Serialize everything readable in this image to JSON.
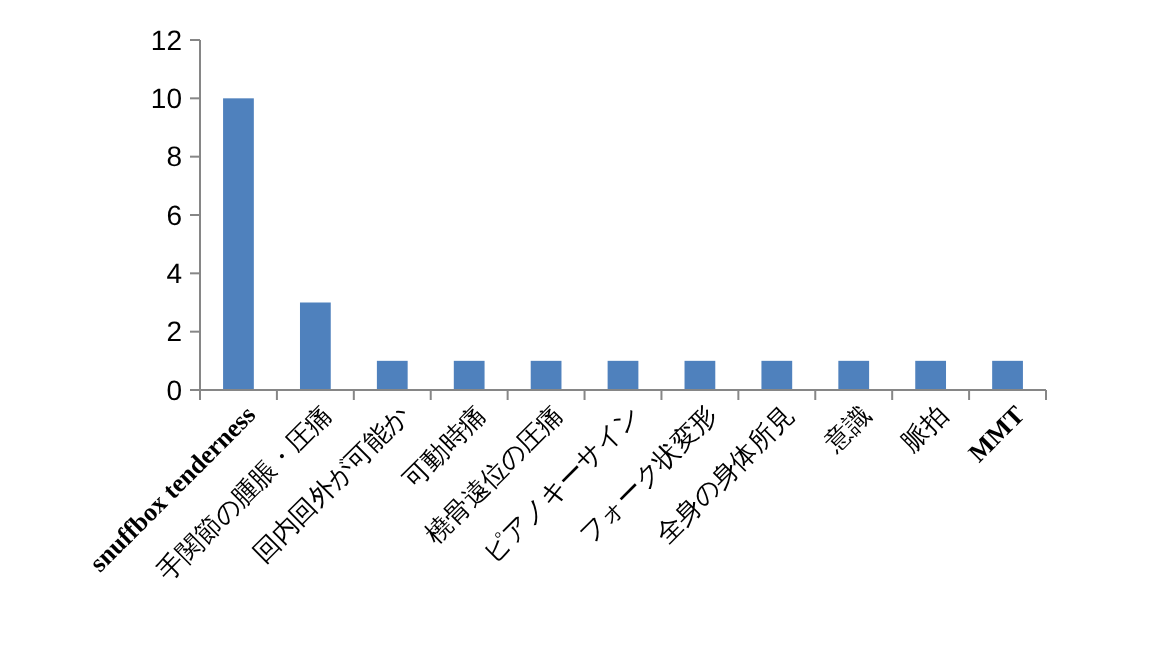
{
  "chart_data": {
    "type": "bar",
    "categories": [
      "snuffbox tenderness",
      "手関節の腫脹・圧痛",
      "回内回外が可能か",
      "可動時痛",
      "橈骨遠位の圧痛",
      "ピアノキーサイン",
      "フォーク状変形",
      "全身の身体所見",
      "意識",
      "脈拍",
      "MMT"
    ],
    "values": [
      10,
      3,
      1,
      1,
      1,
      1,
      1,
      1,
      1,
      1,
      1
    ],
    "color": "#4f81bd",
    "ylim": [
      0,
      12
    ],
    "yticks": [
      0,
      2,
      4,
      6,
      8,
      10,
      12
    ],
    "grid": false
  }
}
